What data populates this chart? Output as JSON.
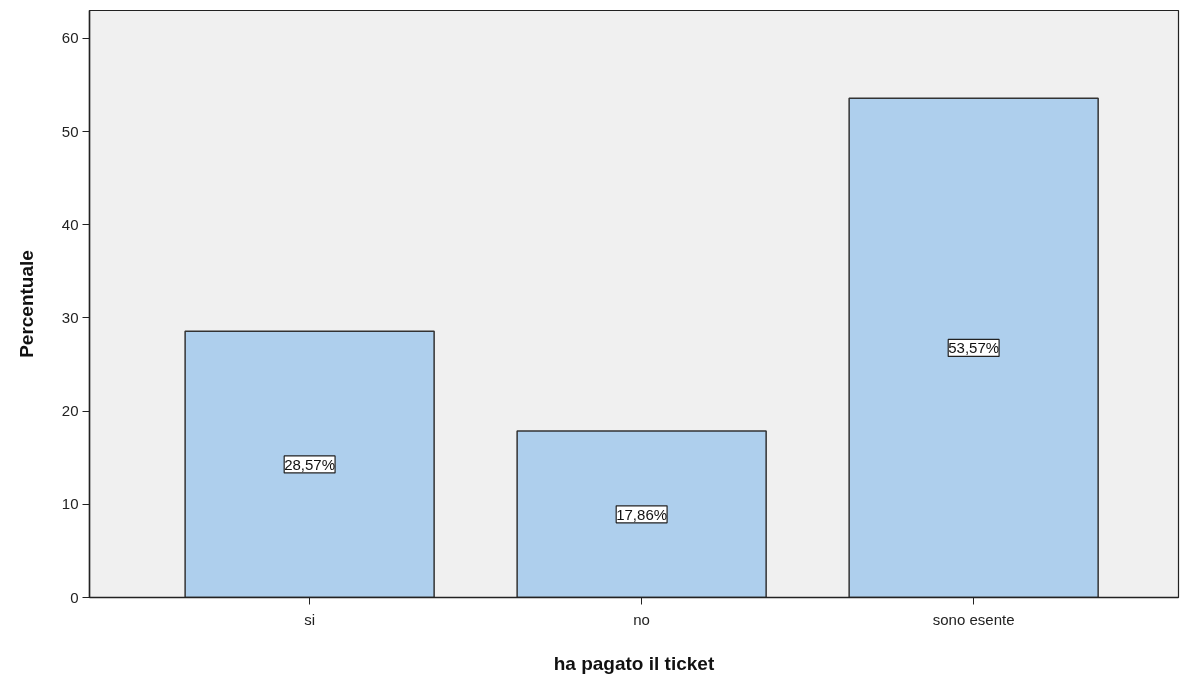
{
  "chart_data": {
    "type": "bar",
    "xlabel": "ha pagato il ticket",
    "ylabel": "Percentuale",
    "categories": [
      "si",
      "no",
      "sono esente"
    ],
    "values": [
      28.57,
      17.86,
      53.57
    ],
    "value_labels": [
      "28,57%",
      "17,86%",
      "53,57%"
    ],
    "color": "#aecfed",
    "ylim": [
      0,
      63
    ],
    "yticks": [
      0,
      10,
      20,
      30,
      40,
      50,
      60
    ]
  }
}
